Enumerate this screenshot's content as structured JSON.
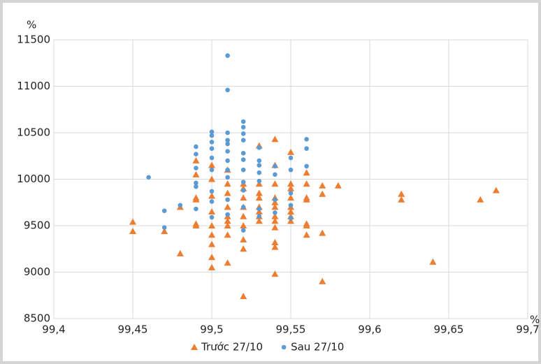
{
  "chart_data": {
    "type": "scatter",
    "y_unit": "%",
    "x_unit": "%",
    "xlim": [
      99.4,
      99.7
    ],
    "xticks": [
      {
        "value": 99.4,
        "label": "99,4"
      },
      {
        "value": 99.45,
        "label": "99,45"
      },
      {
        "value": 99.5,
        "label": "99,5"
      },
      {
        "value": 99.55,
        "label": "99,55"
      },
      {
        "value": 99.6,
        "label": "99,6"
      },
      {
        "value": 99.65,
        "label": "99,65"
      },
      {
        "value": 99.7,
        "label": "99,7"
      }
    ],
    "ylim": [
      8500,
      11500
    ],
    "yticks": [
      8500,
      9000,
      9500,
      10000,
      10500,
      11000,
      11500
    ],
    "grid": true,
    "legend": "bottom",
    "series": [
      {
        "name": "Trước 27/10",
        "color": "#ed7d31",
        "marker": "triangle",
        "x": [
          99.45,
          99.45,
          99.47,
          99.48,
          99.48,
          99.49,
          99.49,
          99.49,
          99.49,
          99.49,
          99.49,
          99.5,
          99.5,
          99.5,
          99.5,
          99.5,
          99.5,
          99.5,
          99.5,
          99.5,
          99.51,
          99.51,
          99.51,
          99.51,
          99.51,
          99.51,
          99.51,
          99.51,
          99.51,
          99.52,
          99.52,
          99.52,
          99.52,
          99.52,
          99.52,
          99.52,
          99.52,
          99.52,
          99.53,
          99.53,
          99.53,
          99.53,
          99.53,
          99.53,
          99.53,
          99.53,
          99.54,
          99.54,
          99.54,
          99.54,
          99.54,
          99.54,
          99.54,
          99.54,
          99.54,
          99.54,
          99.54,
          99.54,
          99.55,
          99.55,
          99.55,
          99.55,
          99.55,
          99.55,
          99.55,
          99.55,
          99.56,
          99.56,
          99.56,
          99.56,
          99.56,
          99.56,
          99.56,
          99.57,
          99.57,
          99.57,
          99.57,
          99.58,
          99.62,
          99.62,
          99.64,
          99.67,
          99.68
        ],
        "values": [
          9540,
          9440,
          9440,
          9700,
          9200,
          10200,
          10050,
          9800,
          9780,
          9520,
          9500,
          10150,
          10000,
          9820,
          9650,
          9500,
          9400,
          9300,
          9160,
          9050,
          10100,
          9950,
          9850,
          9700,
          9600,
          9550,
          9500,
          9400,
          9100,
          9950,
          9900,
          9800,
          9700,
          9600,
          9500,
          9350,
          9250,
          8740,
          10360,
          9950,
          9850,
          9800,
          9700,
          9650,
          9600,
          9550,
          10430,
          10150,
          9950,
          9800,
          9750,
          9700,
          9600,
          9550,
          9480,
          9320,
          9270,
          8980,
          10290,
          9950,
          9900,
          9800,
          9700,
          9650,
          9600,
          9550,
          10070,
          9950,
          9800,
          9780,
          9520,
          9500,
          9400,
          9930,
          9840,
          9420,
          8900,
          9930,
          9840,
          9780,
          9110,
          9780,
          9880
        ]
      },
      {
        "name": "Sau 27/10",
        "color": "#5b9bd5",
        "marker": "circle",
        "x": [
          99.46,
          99.47,
          99.47,
          99.48,
          99.49,
          99.49,
          99.49,
          99.49,
          99.49,
          99.49,
          99.5,
          99.5,
          99.5,
          99.5,
          99.5,
          99.5,
          99.5,
          99.5,
          99.5,
          99.51,
          99.51,
          99.51,
          99.51,
          99.51,
          99.51,
          99.51,
          99.51,
          99.51,
          99.51,
          99.51,
          99.52,
          99.52,
          99.52,
          99.52,
          99.52,
          99.52,
          99.52,
          99.52,
          99.52,
          99.52,
          99.52,
          99.53,
          99.53,
          99.53,
          99.53,
          99.53,
          99.53,
          99.53,
          99.54,
          99.54,
          99.54,
          99.54,
          99.55,
          99.55,
          99.55,
          99.55,
          99.55,
          99.56,
          99.56,
          99.56
        ],
        "values": [
          10020,
          9660,
          9480,
          9720,
          10350,
          10270,
          10120,
          9960,
          9920,
          9680,
          10510,
          10470,
          10400,
          10330,
          10230,
          10100,
          9870,
          9760,
          9590,
          11330,
          10960,
          10500,
          10420,
          10380,
          10300,
          10200,
          10100,
          10020,
          9780,
          9620,
          10620,
          10560,
          10490,
          10420,
          10280,
          10210,
          10100,
          9970,
          9880,
          9700,
          9450,
          10340,
          10200,
          10150,
          10070,
          9980,
          9680,
          9600,
          10140,
          10050,
          9780,
          9640,
          10230,
          10100,
          9850,
          9720,
          9580,
          10430,
          10330,
          10140
        ]
      }
    ]
  }
}
